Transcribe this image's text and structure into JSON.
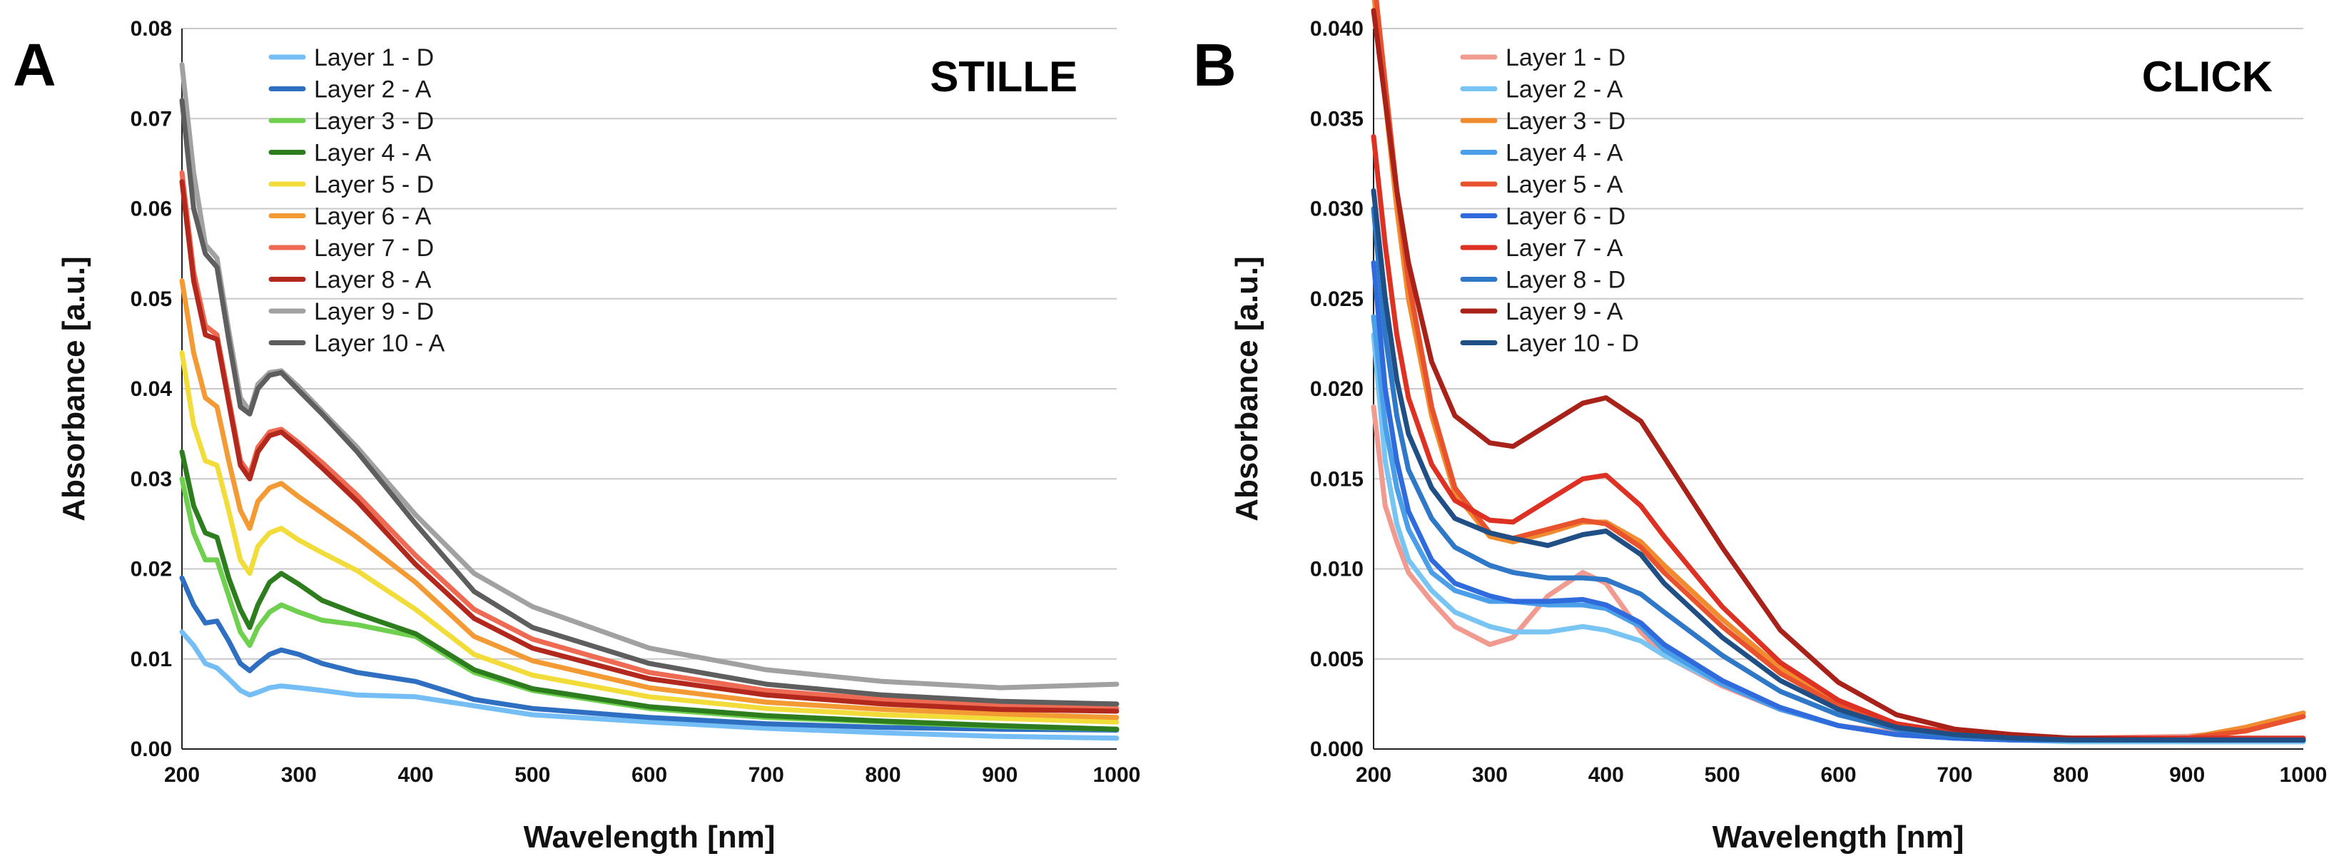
{
  "chart_data": [
    {
      "type": "line",
      "panel_label": "A",
      "title": "STILLE",
      "xlabel": "Wavelength [nm]",
      "ylabel": "Absorbance [a.u.]",
      "xlim": [
        200,
        1000
      ],
      "ylim": [
        0,
        0.08
      ],
      "xticks": [
        200,
        300,
        400,
        500,
        600,
        700,
        800,
        900,
        1000
      ],
      "yticks": [
        0,
        0.01,
        0.02,
        0.03,
        0.04,
        0.05,
        0.06,
        0.07,
        0.08
      ],
      "ytick_labels": [
        "0.00",
        "0.01",
        "0.02",
        "0.03",
        "0.04",
        "0.05",
        "0.06",
        "0.07",
        "0.08"
      ],
      "grid": true,
      "legend_position": "top-left",
      "x": [
        200,
        210,
        220,
        230,
        240,
        250,
        258,
        265,
        275,
        285,
        300,
        320,
        350,
        400,
        450,
        500,
        600,
        700,
        800,
        900,
        1000
      ],
      "series": [
        {
          "name": "Layer 1 - D",
          "color": "#74bef5",
          "values": [
            0.013,
            0.0115,
            0.0095,
            0.009,
            0.0078,
            0.0065,
            0.006,
            0.0063,
            0.0068,
            0.007,
            0.0068,
            0.0065,
            0.006,
            0.0058,
            0.0048,
            0.0038,
            0.003,
            0.0023,
            0.0018,
            0.0014,
            0.0012
          ]
        },
        {
          "name": "Layer 2 - A",
          "color": "#2f6fc2",
          "values": [
            0.019,
            0.016,
            0.014,
            0.0142,
            0.012,
            0.0095,
            0.0087,
            0.0095,
            0.0105,
            0.011,
            0.0105,
            0.0095,
            0.0085,
            0.0075,
            0.0055,
            0.0045,
            0.0035,
            0.0028,
            0.0024,
            0.0022,
            0.0021
          ]
        },
        {
          "name": "Layer 3 - D",
          "color": "#6fcf4f",
          "values": [
            0.03,
            0.024,
            0.021,
            0.021,
            0.017,
            0.013,
            0.0115,
            0.0135,
            0.0152,
            0.016,
            0.0152,
            0.0143,
            0.0138,
            0.0125,
            0.0085,
            0.0065,
            0.0045,
            0.0035,
            0.003,
            0.0025,
            0.0022
          ]
        },
        {
          "name": "Layer 4 - A",
          "color": "#2d7d1e",
          "values": [
            0.033,
            0.027,
            0.024,
            0.0235,
            0.019,
            0.0155,
            0.0135,
            0.016,
            0.0185,
            0.0195,
            0.0183,
            0.0165,
            0.015,
            0.0128,
            0.0088,
            0.0067,
            0.0047,
            0.0037,
            0.0031,
            0.0026,
            0.0022
          ]
        },
        {
          "name": "Layer 5 - D",
          "color": "#f2dc3a",
          "values": [
            0.044,
            0.036,
            0.032,
            0.0315,
            0.0265,
            0.021,
            0.0195,
            0.0225,
            0.024,
            0.0245,
            0.0232,
            0.0218,
            0.0198,
            0.0155,
            0.0105,
            0.0082,
            0.0058,
            0.0045,
            0.0038,
            0.0034,
            0.003
          ]
        },
        {
          "name": "Layer 6 - A",
          "color": "#f39a35",
          "values": [
            0.052,
            0.044,
            0.039,
            0.038,
            0.032,
            0.0265,
            0.0245,
            0.0275,
            0.029,
            0.0295,
            0.028,
            0.0262,
            0.0235,
            0.0185,
            0.0125,
            0.0098,
            0.0068,
            0.0052,
            0.0044,
            0.0039,
            0.0035
          ]
        },
        {
          "name": "Layer 7 - D",
          "color": "#ee6a52",
          "values": [
            0.064,
            0.053,
            0.047,
            0.046,
            0.039,
            0.032,
            0.0305,
            0.0335,
            0.0352,
            0.0355,
            0.034,
            0.0318,
            0.0282,
            0.0215,
            0.0155,
            0.0122,
            0.0085,
            0.0065,
            0.0055,
            0.0048,
            0.0045
          ]
        },
        {
          "name": "Layer 8 - A",
          "color": "#b3281c",
          "values": [
            0.063,
            0.052,
            0.046,
            0.0455,
            0.0385,
            0.0315,
            0.03,
            0.033,
            0.0348,
            0.0352,
            0.0336,
            0.0312,
            0.0275,
            0.0205,
            0.0145,
            0.0112,
            0.0078,
            0.006,
            0.005,
            0.0044,
            0.0042
          ]
        },
        {
          "name": "Layer 9 - D",
          "color": "#a1a1a1",
          "values": [
            0.076,
            0.064,
            0.056,
            0.0545,
            0.0465,
            0.039,
            0.0375,
            0.0405,
            0.0418,
            0.042,
            0.0402,
            0.0375,
            0.0335,
            0.026,
            0.0195,
            0.0158,
            0.0112,
            0.0088,
            0.0075,
            0.0068,
            0.0072
          ]
        },
        {
          "name": "Layer 10 - A",
          "color": "#5e5e5e",
          "values": [
            0.072,
            0.06,
            0.055,
            0.0535,
            0.0455,
            0.038,
            0.0372,
            0.04,
            0.0415,
            0.0418,
            0.0398,
            0.0372,
            0.033,
            0.025,
            0.0175,
            0.0135,
            0.0095,
            0.0072,
            0.006,
            0.0053,
            0.005
          ]
        }
      ]
    },
    {
      "type": "line",
      "panel_label": "B",
      "title": "CLICK",
      "xlabel": "Wavelength [nm]",
      "ylabel": "Absorbance [a.u.]",
      "xlim": [
        200,
        1000
      ],
      "ylim": [
        0,
        0.04
      ],
      "xticks": [
        200,
        300,
        400,
        500,
        600,
        700,
        800,
        900,
        1000
      ],
      "yticks": [
        0,
        0.005,
        0.01,
        0.015,
        0.02,
        0.025,
        0.03,
        0.035,
        0.04
      ],
      "ytick_labels": [
        "0.000",
        "0.005",
        "0.010",
        "0.015",
        "0.020",
        "0.025",
        "0.030",
        "0.035",
        "0.040"
      ],
      "grid": true,
      "legend_position": "top-left",
      "x": [
        200,
        210,
        220,
        230,
        250,
        270,
        300,
        320,
        350,
        380,
        400,
        430,
        450,
        500,
        550,
        600,
        650,
        700,
        750,
        800,
        900,
        950,
        1000
      ],
      "series": [
        {
          "name": "Layer 1 - D",
          "color": "#f19a90",
          "values": [
            0.019,
            0.0135,
            0.0115,
            0.0098,
            0.0082,
            0.0068,
            0.0058,
            0.0062,
            0.0085,
            0.0098,
            0.0092,
            0.0065,
            0.0052,
            0.0035,
            0.0022,
            0.0013,
            0.0009,
            0.0007,
            0.0006,
            0.0006,
            0.0007,
            0.001,
            0.0018
          ]
        },
        {
          "name": "Layer 2 - A",
          "color": "#78c4f2",
          "values": [
            0.023,
            0.016,
            0.0125,
            0.0105,
            0.0088,
            0.0076,
            0.0068,
            0.0065,
            0.0065,
            0.0068,
            0.0066,
            0.006,
            0.0052,
            0.0036,
            0.0023,
            0.0013,
            0.0008,
            0.0006,
            0.0005,
            0.0004,
            0.0004,
            0.0004,
            0.0004
          ]
        },
        {
          "name": "Layer 3 - D",
          "color": "#f08b2f",
          "values": [
            0.042,
            0.036,
            0.03,
            0.025,
            0.0185,
            0.0142,
            0.0118,
            0.0115,
            0.012,
            0.0126,
            0.0126,
            0.0115,
            0.0102,
            0.0072,
            0.0045,
            0.0025,
            0.0013,
            0.0008,
            0.0006,
            0.0005,
            0.0006,
            0.0012,
            0.002
          ]
        },
        {
          "name": "Layer 4 - A",
          "color": "#4b9ee8",
          "values": [
            0.024,
            0.018,
            0.0145,
            0.0122,
            0.0098,
            0.0088,
            0.0082,
            0.0082,
            0.008,
            0.008,
            0.0078,
            0.0068,
            0.0055,
            0.0036,
            0.0022,
            0.0013,
            0.0008,
            0.0006,
            0.0005,
            0.0005,
            0.0005,
            0.0005,
            0.0005
          ]
        },
        {
          "name": "Layer 5 - A",
          "color": "#e8522c",
          "values": [
            0.043,
            0.037,
            0.031,
            0.026,
            0.019,
            0.0145,
            0.012,
            0.0117,
            0.0122,
            0.0127,
            0.0125,
            0.0112,
            0.0098,
            0.0068,
            0.0042,
            0.0024,
            0.0013,
            0.0008,
            0.0006,
            0.0005,
            0.0006,
            0.001,
            0.0018
          ]
        },
        {
          "name": "Layer 6 - D",
          "color": "#2f6bdc",
          "values": [
            0.027,
            0.02,
            0.016,
            0.0132,
            0.0105,
            0.0092,
            0.0085,
            0.0082,
            0.0082,
            0.0083,
            0.008,
            0.007,
            0.0058,
            0.0038,
            0.0023,
            0.0013,
            0.0008,
            0.0006,
            0.0005,
            0.0005,
            0.0005,
            0.0005,
            0.0005
          ]
        },
        {
          "name": "Layer 7 - A",
          "color": "#dd3124",
          "values": [
            0.034,
            0.028,
            0.023,
            0.0195,
            0.0158,
            0.0138,
            0.0127,
            0.0126,
            0.0138,
            0.015,
            0.0152,
            0.0135,
            0.0118,
            0.0079,
            0.0048,
            0.0027,
            0.0014,
            0.0009,
            0.0007,
            0.0006,
            0.0006,
            0.0006,
            0.0006
          ]
        },
        {
          "name": "Layer 8 - D",
          "color": "#2f78c8",
          "values": [
            0.03,
            0.023,
            0.0185,
            0.0155,
            0.0128,
            0.0112,
            0.0102,
            0.0098,
            0.0095,
            0.0095,
            0.0094,
            0.0086,
            0.0076,
            0.0052,
            0.0032,
            0.0019,
            0.0011,
            0.0007,
            0.0006,
            0.0005,
            0.0005,
            0.0005,
            0.0005
          ]
        },
        {
          "name": "Layer 9 - A",
          "color": "#a8221a",
          "values": [
            0.041,
            0.036,
            0.031,
            0.027,
            0.0215,
            0.0185,
            0.017,
            0.0168,
            0.018,
            0.0192,
            0.0195,
            0.0182,
            0.0162,
            0.0112,
            0.0066,
            0.0037,
            0.0019,
            0.0011,
            0.0008,
            0.0006,
            0.0005,
            0.0005,
            0.0005
          ]
        },
        {
          "name": "Layer 10 - D",
          "color": "#1f4f85",
          "values": [
            0.031,
            0.025,
            0.0205,
            0.0175,
            0.0145,
            0.0128,
            0.012,
            0.0117,
            0.0113,
            0.0119,
            0.0121,
            0.0108,
            0.0092,
            0.0062,
            0.0038,
            0.0022,
            0.0012,
            0.0008,
            0.0006,
            0.0005,
            0.0005,
            0.0005,
            0.0005
          ]
        }
      ]
    }
  ]
}
